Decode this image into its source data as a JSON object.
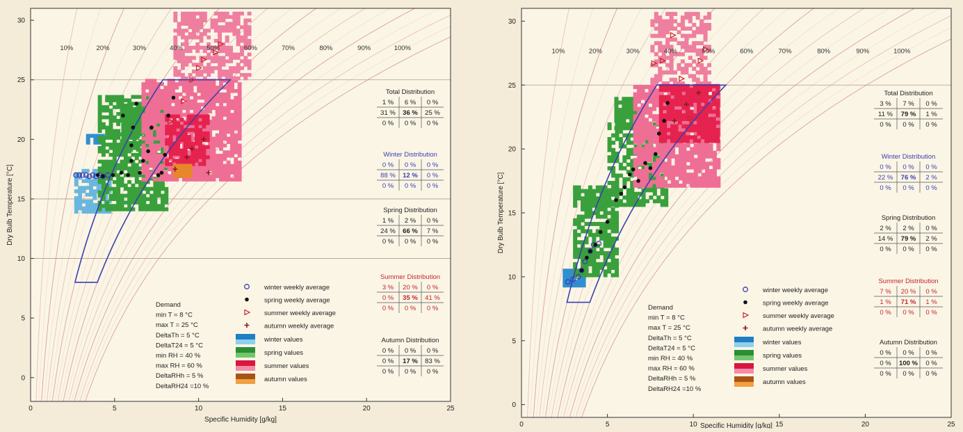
{
  "chart_data": [
    {
      "type": "scatter",
      "xlabel": "Specific Humidity [g/kg]",
      "ylabel": "Dry Bulb Temperature [°C]",
      "xlim": [
        0,
        25
      ],
      "ylim": [
        -2,
        31
      ],
      "xticks": [
        "0",
        "5",
        "10",
        "15",
        "20",
        "25"
      ],
      "yticks": [
        "0",
        "5",
        "10",
        "15",
        "20",
        "25",
        "30"
      ],
      "rh_labels": [
        "10%",
        "20%",
        "30%",
        "40%",
        "50%",
        "60%",
        "70%",
        "80%",
        "90%",
        "100%"
      ],
      "comfort_zone": {
        "t": [
          8,
          25
        ],
        "rh": [
          40,
          60
        ]
      },
      "legend": {
        "markers": [
          "winter weekly average",
          "spring weekly average",
          "summer weekly average",
          "autumn weekly average"
        ],
        "swatches": [
          "winter values",
          "spring values",
          "summer values",
          "autumn values"
        ]
      },
      "demand": [
        "Demand",
        "min T  =   8 °C",
        "max T  =  25 °C",
        "DeltaTh  =  5 °C",
        "DeltaT24 = 5 °C",
        "min RH  =  40 %",
        "max RH  =  60 %",
        "DeltaRHh  =  5 %",
        "DeltaRH24 =10 %"
      ],
      "distributions": [
        {
          "title": "Total Distribution",
          "rows": [
            [
              "1 %",
              "6 %",
              "0 %"
            ],
            [
              "31 %",
              "36 %",
              "25 %"
            ],
            [
              "0 %",
              "0 %",
              "0 %"
            ]
          ]
        },
        {
          "title": "Winter Distribution",
          "rows": [
            [
              "0 %",
              "0 %",
              "0 %"
            ],
            [
              "88 %",
              "12 %",
              "0 %"
            ],
            [
              "0 %",
              "0 %",
              "0 %"
            ]
          ]
        },
        {
          "title": "Spring Distribution",
          "rows": [
            [
              "1 %",
              "2 %",
              "0 %"
            ],
            [
              "24 %",
              "66 %",
              "7 %"
            ],
            [
              "0 %",
              "0 %",
              "0 %"
            ]
          ]
        },
        {
          "title": "Summer Distribution",
          "rows": [
            [
              "3 %",
              "20 %",
              "0 %"
            ],
            [
              "0 %",
              "35 %",
              "41 %"
            ],
            [
              "0 %",
              "0 %",
              "0 %"
            ]
          ]
        },
        {
          "title": "Autumn Distribution",
          "rows": [
            [
              "0 %",
              "0 %",
              "0 %"
            ],
            [
              "0 %",
              "17 %",
              "83 %"
            ],
            [
              "0 %",
              "0 %",
              "0 %"
            ]
          ]
        }
      ],
      "series": [
        {
          "name": "winter weekly average",
          "x": [
            2.7,
            2.9,
            3.1,
            3.3,
            3.5,
            3.7,
            3.9,
            4.1,
            4.3,
            4.6
          ],
          "y": [
            17.0,
            17.0,
            17.0,
            17.0,
            16.9,
            17.0,
            16.9,
            17.0,
            16.9,
            17.0
          ]
        },
        {
          "name": "spring weekly average",
          "x": [
            4.0,
            4.3,
            4.9,
            5.4,
            5.5,
            5.8,
            6.0,
            6.0,
            6.1,
            6.3,
            6.5,
            6.7,
            7.0,
            7.2,
            7.6,
            7.8,
            8.0,
            8.2,
            8.5
          ],
          "y": [
            17.0,
            16.9,
            17.0,
            17.2,
            22.0,
            17.0,
            18.2,
            19.5,
            21.0,
            23.0,
            17.2,
            18.2,
            19.0,
            21.0,
            17.0,
            17.2,
            18.7,
            22.0,
            23.5
          ]
        },
        {
          "name": "summer weekly average",
          "x": [
            8.3,
            9.1,
            9.6,
            10.0,
            10.3,
            11.0,
            11.3
          ],
          "y": [
            21.5,
            23.2,
            25.0,
            26.0,
            26.7,
            27.3,
            28.0
          ]
        },
        {
          "name": "autumn weekly average",
          "x": [
            8.6,
            9.3,
            9.6,
            10.3,
            10.6
          ],
          "y": [
            17.5,
            18.5,
            19.2,
            20.0,
            17.2
          ]
        }
      ]
    },
    {
      "type": "scatter",
      "xlabel": "Specific Humidity [g/kg]",
      "ylabel": "Dry Bulb Temperature [°C]",
      "xlim": [
        0,
        25
      ],
      "ylim": [
        -1,
        31
      ],
      "xticks": [
        "0",
        "5",
        "10",
        "15",
        "20",
        "25"
      ],
      "yticks": [
        "0",
        "5",
        "10",
        "15",
        "20",
        "25",
        "30"
      ],
      "rh_labels": [
        "10%",
        "20%",
        "30%",
        "40%",
        "50%",
        "60%",
        "70%",
        "80%",
        "90%",
        "100%"
      ],
      "comfort_zone": {
        "t": [
          8,
          25
        ],
        "rh": [
          40,
          60
        ]
      },
      "legend": {
        "markers": [
          "winter weekly average",
          "spring weekly average",
          "summer weekly average",
          "autumn weekly average"
        ],
        "swatches": [
          "winter values",
          "spring values",
          "summer values",
          "autumn values"
        ]
      },
      "demand": [
        "Demand",
        "min T  =   8 °C",
        "max T  =  25 °C",
        "DeltaTh  =  5 °C",
        "DeltaT24 = 5 °C",
        "min RH  =  40 %",
        "max RH  =  60 %",
        "DeltaRHh  =  5 %",
        "DeltaRH24 =10 %"
      ],
      "distributions": [
        {
          "title": "Total Distribution",
          "rows": [
            [
              "3 %",
              "7 %",
              "0 %"
            ],
            [
              "11 %",
              "79 %",
              "1 %"
            ],
            [
              "0 %",
              "0 %",
              "0 %"
            ]
          ]
        },
        {
          "title": "Winter Distribution",
          "rows": [
            [
              "0 %",
              "0 %",
              "0 %"
            ],
            [
              "22 %",
              "76 %",
              "2 %"
            ],
            [
              "0 %",
              "0 %",
              "0 %"
            ]
          ]
        },
        {
          "title": "Spring Distribution",
          "rows": [
            [
              "2 %",
              "2 %",
              "0 %"
            ],
            [
              "14 %",
              "79 %",
              "2 %"
            ],
            [
              "0 %",
              "0 %",
              "0 %"
            ]
          ]
        },
        {
          "title": "Summer Distribution",
          "rows": [
            [
              "7 %",
              "20 %",
              "0 %"
            ],
            [
              "1 %",
              "71 %",
              "1 %"
            ],
            [
              "0 %",
              "0 %",
              "0 %"
            ]
          ]
        },
        {
          "title": "Autumn Distribution",
          "rows": [
            [
              "0 %",
              "0 %",
              "0 %"
            ],
            [
              "0 %",
              "100 %",
              "0 %"
            ],
            [
              "0 %",
              "0 %",
              "0 %"
            ]
          ]
        }
      ],
      "series": [
        {
          "name": "winter weekly average",
          "x": [
            2.7,
            3.0,
            3.3,
            3.5,
            3.7,
            4.0,
            4.2,
            4.5
          ],
          "y": [
            9.6,
            9.8,
            10.0,
            10.5,
            11.2,
            12.0,
            12.5,
            12.6
          ]
        },
        {
          "name": "spring weekly average",
          "x": [
            3.5,
            3.8,
            4.0,
            4.3,
            4.6,
            5.0,
            5.5,
            5.8,
            6.0,
            6.3,
            6.5,
            6.8,
            7.2,
            7.5,
            7.8,
            8.0,
            8.3,
            8.5
          ],
          "y": [
            10.5,
            11.5,
            12.0,
            12.5,
            13.5,
            14.3,
            16.0,
            16.5,
            17.0,
            18.0,
            18.4,
            17.5,
            18.9,
            18.5,
            19.6,
            21.2,
            22.2,
            23.6
          ]
        },
        {
          "name": "summer weekly average",
          "x": [
            7.7,
            8.2,
            8.8,
            9.3,
            9.8,
            10.4,
            10.7
          ],
          "y": [
            26.7,
            26.9,
            28.9,
            25.5,
            22.4,
            26.9,
            27.8
          ]
        },
        {
          "name": "autumn weekly average",
          "x": [
            8.9,
            9.6,
            10.3
          ],
          "y": [
            22.2,
            23.5,
            24.4
          ]
        }
      ]
    }
  ]
}
